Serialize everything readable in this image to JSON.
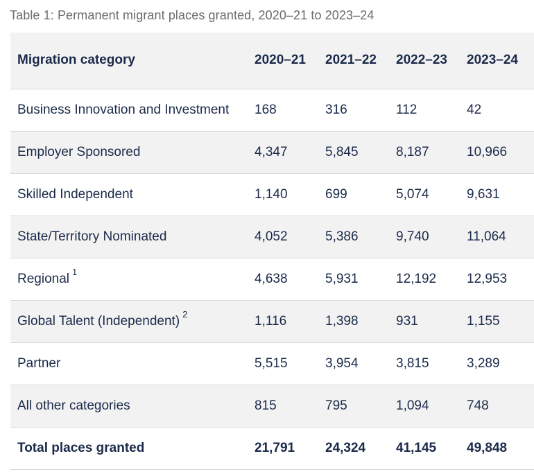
{
  "caption": "Table 1: Permanent migrant places granted, 2020–21 to 2023–24",
  "table": {
    "headers": [
      "Migration category",
      "2020–21",
      "2021–22",
      "2022–23",
      "2023–24"
    ],
    "rows": [
      {
        "category": "Business Innovation and Investment",
        "note": "",
        "values": [
          "168",
          "316",
          "112",
          "42"
        ]
      },
      {
        "category": "Employer Sponsored",
        "note": "",
        "values": [
          "4,347",
          "5,845",
          "8,187",
          "10,966"
        ]
      },
      {
        "category": "Skilled Independent",
        "note": "",
        "values": [
          "1,140",
          "699",
          "5,074",
          "9,631"
        ]
      },
      {
        "category": "State/Territory Nominated",
        "note": "",
        "values": [
          "4,052",
          "5,386",
          "9,740",
          "11,064"
        ]
      },
      {
        "category": "Regional",
        "note": "1",
        "values": [
          "4,638",
          "5,931",
          "12,192",
          "12,953"
        ]
      },
      {
        "category": "Global Talent (Independent)",
        "note": "2",
        "values": [
          "1,116",
          "1,398",
          "931",
          "1,155"
        ]
      },
      {
        "category": "Partner",
        "note": "",
        "values": [
          "5,515",
          "3,954",
          "3,815",
          "3,289"
        ]
      },
      {
        "category": "All other categories",
        "note": "",
        "values": [
          "815",
          "795",
          "1,094",
          "748"
        ]
      }
    ],
    "total": {
      "category": "Total places granted",
      "values": [
        "21,791",
        "24,324",
        "41,145",
        "49,848"
      ]
    }
  }
}
